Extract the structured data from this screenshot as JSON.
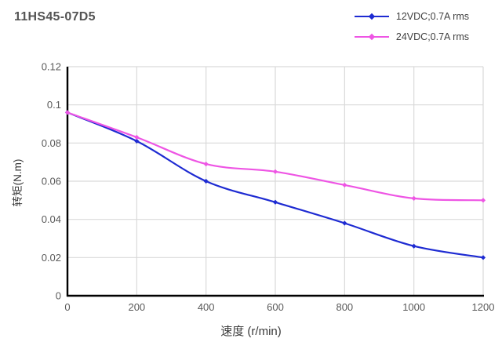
{
  "header": {
    "title": "11HS45-07D5"
  },
  "colors": {
    "background": "#FFFFFF",
    "grid": "#D9D9D9",
    "axis": "#000000",
    "tick_label": "#595959",
    "axis_title": "#3A3A3A",
    "title": "#545454",
    "legend_label": "#404040",
    "series_blue": "#1E2BD2",
    "series_magenta": "#EE55E4"
  },
  "chart_data": {
    "type": "line",
    "title": "11HS45-07D5",
    "xlabel": "速度 (r/min)",
    "ylabel": "转矩(N.m)",
    "x": [
      0,
      200,
      400,
      600,
      800,
      1000,
      1200
    ],
    "series": [
      {
        "name": "12VDC;0.7A rms",
        "color": "#1E2BD2",
        "values": [
          0.096,
          0.081,
          0.06,
          0.049,
          0.038,
          0.026,
          0.02
        ]
      },
      {
        "name": "24VDC;0.7A rms",
        "color": "#EE55E4",
        "values": [
          0.096,
          0.083,
          0.069,
          0.065,
          0.058,
          0.051,
          0.05
        ]
      }
    ],
    "xlim": [
      0,
      1200
    ],
    "ylim": [
      0,
      0.12
    ],
    "x_ticks": [
      "0",
      "200",
      "400",
      "600",
      "800",
      "1000",
      "1200"
    ],
    "y_ticks": [
      "0",
      "0.02",
      "0.04",
      "0.06",
      "0.08",
      "0.1",
      "0.12"
    ],
    "grid": true,
    "smooth": true,
    "marker": "diamond",
    "legend_position": "top-right"
  }
}
